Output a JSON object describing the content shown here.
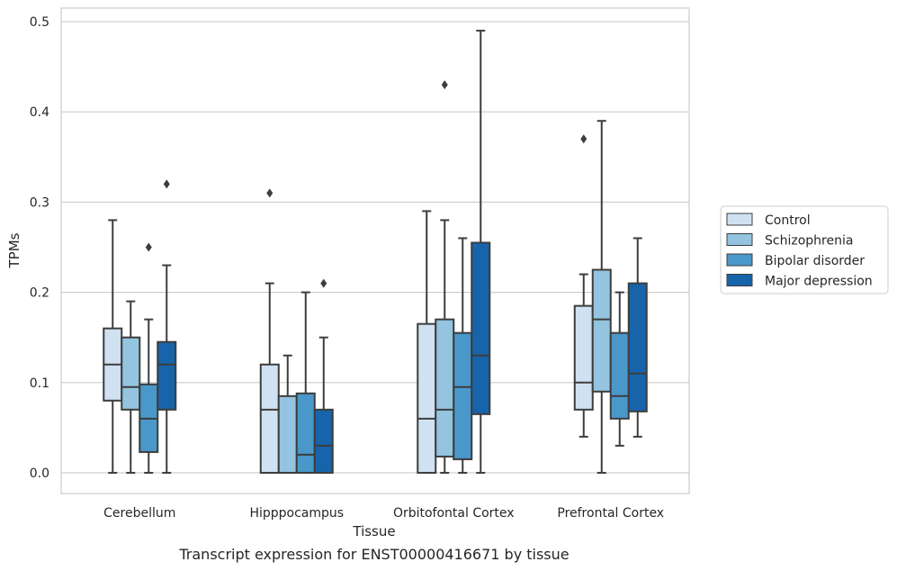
{
  "caption": "Transcript expression for ENST00000416671 by tissue",
  "chart_data": {
    "type": "box",
    "title": "",
    "xlabel": "Tissue",
    "ylabel": "TPMs",
    "ylim": [
      -0.023,
      0.515
    ],
    "yticks": [
      0.0,
      0.1,
      0.2,
      0.3,
      0.4,
      0.5
    ],
    "ytick_labels": [
      "0.0",
      "0.1",
      "0.2",
      "0.3",
      "0.4",
      "0.5"
    ],
    "grid": true,
    "legend_position": "right",
    "categories": [
      "Cerebellum",
      "Hipppocampus",
      "Orbitofontal Cortex",
      "Prefrontal Cortex"
    ],
    "series": [
      {
        "name": "Control",
        "color": "#d0e1f2",
        "boxes": [
          {
            "min": 0.0,
            "q1": 0.08,
            "median": 0.12,
            "q3": 0.16,
            "max": 0.28,
            "outliers": []
          },
          {
            "min": 0.0,
            "q1": 0.0,
            "median": 0.07,
            "q3": 0.12,
            "max": 0.21,
            "outliers": [
              0.31
            ]
          },
          {
            "min": 0.0,
            "q1": 0.0,
            "median": 0.06,
            "q3": 0.165,
            "max": 0.29,
            "outliers": []
          },
          {
            "min": 0.04,
            "q1": 0.07,
            "median": 0.1,
            "q3": 0.185,
            "max": 0.22,
            "outliers": [
              0.37
            ]
          }
        ]
      },
      {
        "name": "Schizophrenia",
        "color": "#94c4df",
        "boxes": [
          {
            "min": 0.0,
            "q1": 0.07,
            "median": 0.095,
            "q3": 0.15,
            "max": 0.19,
            "outliers": []
          },
          {
            "min": 0.0,
            "q1": 0.0,
            "median": 0.0,
            "q3": 0.085,
            "max": 0.13,
            "outliers": []
          },
          {
            "min": 0.0,
            "q1": 0.018,
            "median": 0.07,
            "q3": 0.17,
            "max": 0.28,
            "outliers": [
              0.43
            ]
          },
          {
            "min": 0.0,
            "q1": 0.09,
            "median": 0.17,
            "q3": 0.225,
            "max": 0.39,
            "outliers": []
          }
        ]
      },
      {
        "name": "Bipolar disorder",
        "color": "#4a98c9",
        "boxes": [
          {
            "min": 0.0,
            "q1": 0.023,
            "median": 0.06,
            "q3": 0.098,
            "max": 0.17,
            "outliers": [
              0.25
            ]
          },
          {
            "min": 0.0,
            "q1": 0.0,
            "median": 0.02,
            "q3": 0.088,
            "max": 0.2,
            "outliers": []
          },
          {
            "min": 0.0,
            "q1": 0.015,
            "median": 0.095,
            "q3": 0.155,
            "max": 0.26,
            "outliers": []
          },
          {
            "min": 0.03,
            "q1": 0.06,
            "median": 0.085,
            "q3": 0.155,
            "max": 0.2,
            "outliers": []
          }
        ]
      },
      {
        "name": "Major depression",
        "color": "#1764ab",
        "boxes": [
          {
            "min": 0.0,
            "q1": 0.07,
            "median": 0.12,
            "q3": 0.145,
            "max": 0.23,
            "outliers": [
              0.32
            ]
          },
          {
            "min": 0.0,
            "q1": 0.0,
            "median": 0.03,
            "q3": 0.07,
            "max": 0.15,
            "outliers": [
              0.21
            ]
          },
          {
            "min": 0.0,
            "q1": 0.065,
            "median": 0.13,
            "q3": 0.255,
            "max": 0.49,
            "outliers": []
          },
          {
            "min": 0.04,
            "q1": 0.068,
            "median": 0.11,
            "q3": 0.21,
            "max": 0.26,
            "outliers": []
          }
        ]
      }
    ]
  }
}
